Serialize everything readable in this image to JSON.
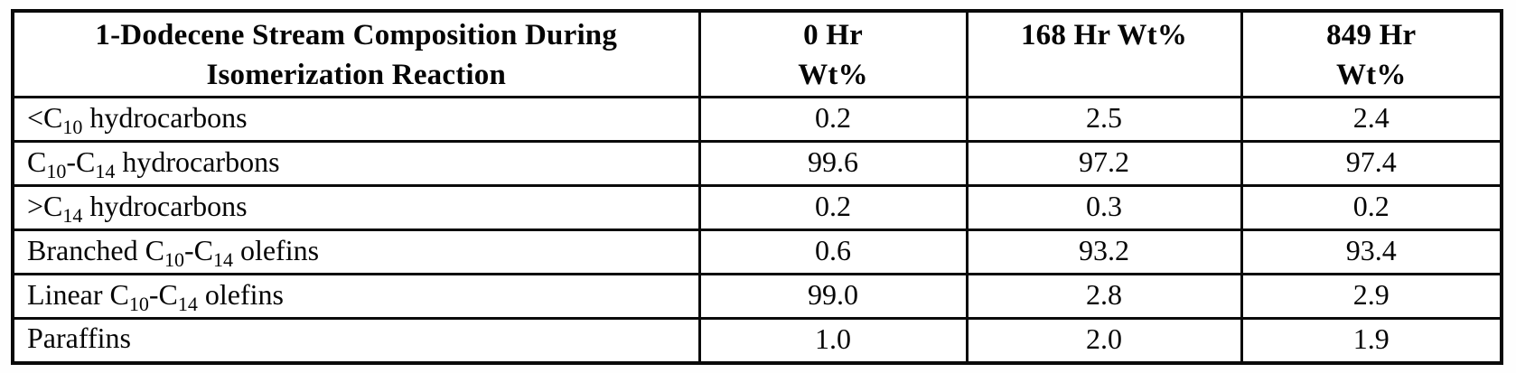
{
  "table": {
    "columns": [
      {
        "id": "composition",
        "lines": [
          "1-Dodecene Stream Composition During",
          "Isomerization Reaction"
        ]
      },
      {
        "id": "hr0",
        "lines": [
          "0 Hr",
          "Wt%"
        ]
      },
      {
        "id": "hr168",
        "lines": [
          "168 Hr Wt%"
        ]
      },
      {
        "id": "hr849",
        "lines": [
          "849 Hr",
          "Wt%"
        ]
      }
    ],
    "rows": [
      {
        "label": [
          {
            "text": "<C"
          },
          {
            "sub": "10"
          },
          {
            "text": " hydrocarbons"
          }
        ],
        "label_plain": "<C10 hydrocarbons",
        "values": [
          "0.2",
          "2.5",
          "2.4"
        ]
      },
      {
        "label": [
          {
            "text": "C"
          },
          {
            "sub": "10"
          },
          {
            "text": "-C"
          },
          {
            "sub": "14"
          },
          {
            "text": " hydrocarbons"
          }
        ],
        "label_plain": "C10-C14 hydrocarbons",
        "values": [
          "99.6",
          "97.2",
          "97.4"
        ]
      },
      {
        "label": [
          {
            "text": ">C"
          },
          {
            "sub": "14"
          },
          {
            "text": " hydrocarbons"
          }
        ],
        "label_plain": ">C14 hydrocarbons",
        "values": [
          "0.2",
          "0.3",
          "0.2"
        ]
      },
      {
        "label": [
          {
            "text": "Branched C"
          },
          {
            "sub": "10"
          },
          {
            "text": "-C"
          },
          {
            "sub": "14"
          },
          {
            "text": " olefins"
          }
        ],
        "label_plain": "Branched C10-C14 olefins",
        "values": [
          "0.6",
          "93.2",
          "93.4"
        ]
      },
      {
        "label": [
          {
            "text": "Linear C"
          },
          {
            "sub": "10"
          },
          {
            "text": "-C"
          },
          {
            "sub": "14"
          },
          {
            "text": " olefins"
          }
        ],
        "label_plain": "Linear C10-C14 olefins",
        "values": [
          "99.0",
          "2.8",
          "2.9"
        ]
      },
      {
        "label": [
          {
            "text": "Paraffins"
          }
        ],
        "label_plain": "Paraffins",
        "values": [
          "1.0",
          "2.0",
          "1.9"
        ]
      }
    ],
    "colors": {
      "border": "#0a0a0a",
      "text": "#050505",
      "background": "#ffffff"
    }
  }
}
